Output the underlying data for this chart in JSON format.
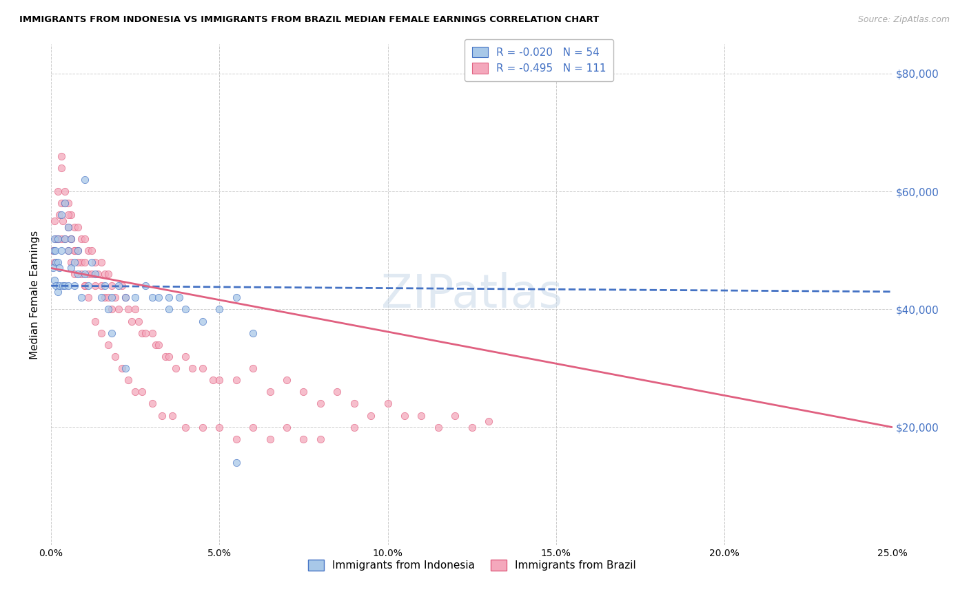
{
  "title": "IMMIGRANTS FROM INDONESIA VS IMMIGRANTS FROM BRAZIL MEDIAN FEMALE EARNINGS CORRELATION CHART",
  "source": "Source: ZipAtlas.com",
  "ylabel": "Median Female Earnings",
  "yticks": [
    0,
    20000,
    40000,
    60000,
    80000
  ],
  "ytick_labels_right": [
    "",
    "$20,000",
    "$40,000",
    "$60,000",
    "$80,000"
  ],
  "xlim": [
    0.0,
    0.25
  ],
  "ylim": [
    0,
    85000
  ],
  "xticks": [
    0.0,
    0.05,
    0.1,
    0.15,
    0.2,
    0.25
  ],
  "xtick_labels": [
    "0.0%",
    "5.0%",
    "10.0%",
    "15.0%",
    "20.0%",
    "25.0%"
  ],
  "legend_r1": "-0.020",
  "legend_n1": "54",
  "legend_r2": "-0.495",
  "legend_n2": "111",
  "color_indonesia": "#a8c8e8",
  "color_brazil": "#f4a8bc",
  "line_color_indonesia": "#4472c4",
  "line_color_brazil": "#e06080",
  "watermark": "ZIPatlas",
  "indo_trend_x": [
    0.0,
    0.25
  ],
  "indo_trend_y": [
    44000,
    43000
  ],
  "braz_trend_x": [
    0.0,
    0.25
  ],
  "braz_trend_y": [
    47000,
    20000
  ],
  "indonesia_scatter_x": [
    0.0005,
    0.0008,
    0.001,
    0.001,
    0.0012,
    0.0015,
    0.0015,
    0.002,
    0.002,
    0.002,
    0.0025,
    0.0025,
    0.003,
    0.003,
    0.0035,
    0.004,
    0.004,
    0.004,
    0.005,
    0.005,
    0.005,
    0.006,
    0.006,
    0.007,
    0.007,
    0.008,
    0.008,
    0.009,
    0.01,
    0.01,
    0.011,
    0.012,
    0.013,
    0.015,
    0.016,
    0.017,
    0.018,
    0.02,
    0.022,
    0.025,
    0.028,
    0.03,
    0.032,
    0.035,
    0.038,
    0.04,
    0.045,
    0.05,
    0.055,
    0.06,
    0.018,
    0.022,
    0.035,
    0.055
  ],
  "indonesia_scatter_y": [
    47000,
    50000,
    52000,
    45000,
    50000,
    48000,
    44000,
    52000,
    48000,
    43000,
    47000,
    44000,
    56000,
    50000,
    44000,
    58000,
    52000,
    44000,
    54000,
    50000,
    44000,
    52000,
    47000,
    48000,
    44000,
    50000,
    46000,
    42000,
    62000,
    46000,
    44000,
    48000,
    46000,
    42000,
    44000,
    40000,
    42000,
    44000,
    42000,
    42000,
    44000,
    42000,
    42000,
    40000,
    42000,
    40000,
    38000,
    40000,
    42000,
    36000,
    36000,
    30000,
    42000,
    14000
  ],
  "brazil_scatter_x": [
    0.0005,
    0.001,
    0.001,
    0.0015,
    0.002,
    0.002,
    0.0025,
    0.003,
    0.003,
    0.003,
    0.0035,
    0.004,
    0.004,
    0.005,
    0.005,
    0.005,
    0.006,
    0.006,
    0.006,
    0.007,
    0.007,
    0.007,
    0.008,
    0.008,
    0.009,
    0.009,
    0.01,
    0.01,
    0.01,
    0.011,
    0.011,
    0.012,
    0.012,
    0.013,
    0.013,
    0.014,
    0.015,
    0.015,
    0.016,
    0.016,
    0.017,
    0.017,
    0.018,
    0.018,
    0.019,
    0.02,
    0.021,
    0.022,
    0.023,
    0.024,
    0.025,
    0.026,
    0.027,
    0.028,
    0.03,
    0.031,
    0.032,
    0.034,
    0.035,
    0.037,
    0.04,
    0.042,
    0.045,
    0.048,
    0.05,
    0.055,
    0.06,
    0.065,
    0.07,
    0.075,
    0.08,
    0.085,
    0.09,
    0.095,
    0.1,
    0.105,
    0.11,
    0.115,
    0.12,
    0.125,
    0.003,
    0.004,
    0.005,
    0.006,
    0.007,
    0.008,
    0.009,
    0.01,
    0.011,
    0.013,
    0.015,
    0.017,
    0.019,
    0.021,
    0.023,
    0.025,
    0.027,
    0.03,
    0.033,
    0.036,
    0.04,
    0.045,
    0.05,
    0.055,
    0.06,
    0.065,
    0.07,
    0.075,
    0.08,
    0.09,
    0.13
  ],
  "brazil_scatter_y": [
    50000,
    55000,
    48000,
    52000,
    60000,
    52000,
    56000,
    64000,
    58000,
    52000,
    55000,
    58000,
    52000,
    58000,
    54000,
    50000,
    56000,
    52000,
    48000,
    54000,
    50000,
    46000,
    54000,
    50000,
    52000,
    48000,
    52000,
    48000,
    44000,
    50000,
    46000,
    50000,
    46000,
    48000,
    44000,
    46000,
    48000,
    44000,
    46000,
    42000,
    46000,
    42000,
    44000,
    40000,
    42000,
    40000,
    44000,
    42000,
    40000,
    38000,
    40000,
    38000,
    36000,
    36000,
    36000,
    34000,
    34000,
    32000,
    32000,
    30000,
    32000,
    30000,
    30000,
    28000,
    28000,
    28000,
    30000,
    26000,
    28000,
    26000,
    24000,
    26000,
    24000,
    22000,
    24000,
    22000,
    22000,
    20000,
    22000,
    20000,
    66000,
    60000,
    56000,
    52000,
    50000,
    48000,
    46000,
    44000,
    42000,
    38000,
    36000,
    34000,
    32000,
    30000,
    28000,
    26000,
    26000,
    24000,
    22000,
    22000,
    20000,
    20000,
    20000,
    18000,
    20000,
    18000,
    20000,
    18000,
    18000,
    20000,
    21000
  ]
}
